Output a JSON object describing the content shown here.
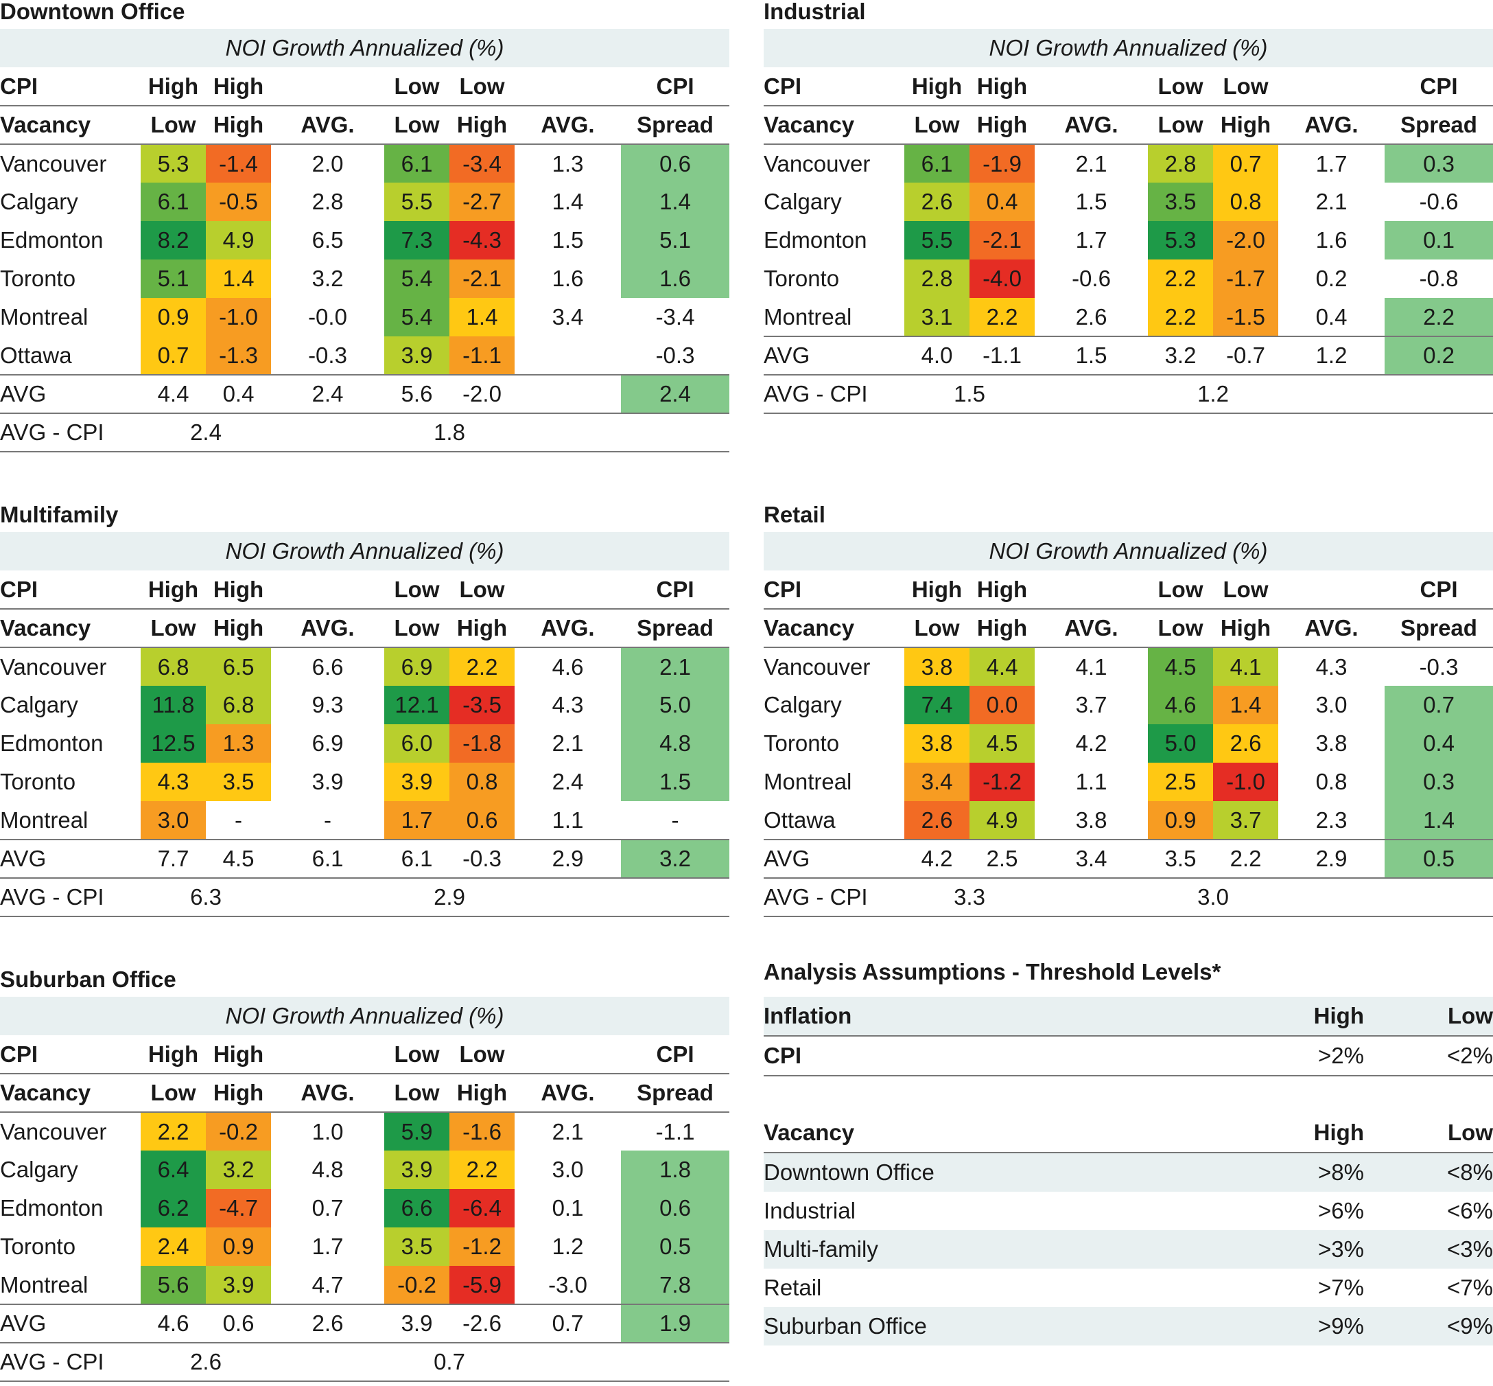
{
  "colors": {
    "header_band": "#e8f0f1",
    "spread_highlight": "#84c98b",
    "heat_dark_green": "#1e9a48",
    "heat_green": "#66b345",
    "heat_yellow_green": "#b8cf2d",
    "heat_yellow": "#ffc813",
    "heat_orange": "#f79c22",
    "heat_orange_red": "#f26b24",
    "heat_red": "#e52d24"
  },
  "common": {
    "band_label": "NOI Growth Annualized (%)",
    "row_cpi": "CPI",
    "row_vacancy": "Vacancy",
    "high": "High",
    "low": "Low",
    "avg_col": "AVG.",
    "spread": "Spread",
    "avg_row": "AVG",
    "avg_cpi_row": "AVG - CPI"
  },
  "panels": [
    {
      "id": "downtown",
      "title": "Downtown Office",
      "rows": [
        {
          "city": "Vancouver",
          "hl": [
            "5.3",
            "#b8cf2d"
          ],
          "hh": [
            "-1.4",
            "#f26b24"
          ],
          "havg": "2.0",
          "ll": [
            "6.1",
            "#66b345"
          ],
          "lh": [
            "-3.4",
            "#f26b24"
          ],
          "lavg": "1.3",
          "spread": "0.6",
          "sh": true
        },
        {
          "city": "Calgary",
          "hl": [
            "6.1",
            "#66b345"
          ],
          "hh": [
            "-0.5",
            "#f79c22"
          ],
          "havg": "2.8",
          "ll": [
            "5.5",
            "#b8cf2d"
          ],
          "lh": [
            "-2.7",
            "#f79c22"
          ],
          "lavg": "1.4",
          "spread": "1.4",
          "sh": true
        },
        {
          "city": "Edmonton",
          "hl": [
            "8.2",
            "#1e9a48"
          ],
          "hh": [
            "4.9",
            "#b8cf2d"
          ],
          "havg": "6.5",
          "ll": [
            "7.3",
            "#1e9a48"
          ],
          "lh": [
            "-4.3",
            "#e52d24"
          ],
          "lavg": "1.5",
          "spread": "5.1",
          "sh": true
        },
        {
          "city": "Toronto",
          "hl": [
            "5.1",
            "#66b345"
          ],
          "hh": [
            "1.4",
            "#ffc813"
          ],
          "havg": "3.2",
          "ll": [
            "5.4",
            "#66b345"
          ],
          "lh": [
            "-2.1",
            "#f79c22"
          ],
          "lavg": "1.6",
          "spread": "1.6",
          "sh": true
        },
        {
          "city": "Montreal",
          "hl": [
            "0.9",
            "#ffc813"
          ],
          "hh": [
            "-1.0",
            "#f79c22"
          ],
          "havg": "-0.0",
          "ll": [
            "5.4",
            "#66b345"
          ],
          "lh": [
            "1.4",
            "#ffc813"
          ],
          "lavg": "3.4",
          "spread": "-3.4",
          "sh": false
        },
        {
          "city": "Ottawa",
          "hl": [
            "0.7",
            "#ffc813"
          ],
          "hh": [
            "-1.3",
            "#f79c22"
          ],
          "havg": "-0.3",
          "ll": [
            "3.9",
            "#b8cf2d"
          ],
          "lh": [
            "-1.1",
            "#f79c22"
          ],
          "lavg": "",
          "spread": "-0.3",
          "sh": false
        }
      ],
      "avg": {
        "hl": "4.4",
        "hh": "0.4",
        "havg": "2.4",
        "ll": "5.6",
        "lh": "-2.0",
        "lavg": "",
        "spread": "2.4",
        "sh": true
      },
      "avg_cpi": {
        "high": "2.4",
        "low": "1.8"
      }
    },
    {
      "id": "industrial",
      "title": "Industrial",
      "rows": [
        {
          "city": "Vancouver",
          "hl": [
            "6.1",
            "#66b345"
          ],
          "hh": [
            "-1.9",
            "#f26b24"
          ],
          "havg": "2.1",
          "ll": [
            "2.8",
            "#b8cf2d"
          ],
          "lh": [
            "0.7",
            "#ffc813"
          ],
          "lavg": "1.7",
          "spread": "0.3",
          "sh": true
        },
        {
          "city": "Calgary",
          "hl": [
            "2.6",
            "#b8cf2d"
          ],
          "hh": [
            "0.4",
            "#f79c22"
          ],
          "havg": "1.5",
          "ll": [
            "3.5",
            "#66b345"
          ],
          "lh": [
            "0.8",
            "#ffc813"
          ],
          "lavg": "2.1",
          "spread": "-0.6",
          "sh": false
        },
        {
          "city": "Edmonton",
          "hl": [
            "5.5",
            "#1e9a48"
          ],
          "hh": [
            "-2.1",
            "#f26b24"
          ],
          "havg": "1.7",
          "ll": [
            "5.3",
            "#1e9a48"
          ],
          "lh": [
            "-2.0",
            "#f79c22"
          ],
          "lavg": "1.6",
          "spread": "0.1",
          "sh": true
        },
        {
          "city": "Toronto",
          "hl": [
            "2.8",
            "#b8cf2d"
          ],
          "hh": [
            "-4.0",
            "#e52d24"
          ],
          "havg": "-0.6",
          "ll": [
            "2.2",
            "#ffc813"
          ],
          "lh": [
            "-1.7",
            "#f79c22"
          ],
          "lavg": "0.2",
          "spread": "-0.8",
          "sh": false
        },
        {
          "city": "Montreal",
          "hl": [
            "3.1",
            "#b8cf2d"
          ],
          "hh": [
            "2.2",
            "#ffc813"
          ],
          "havg": "2.6",
          "ll": [
            "2.2",
            "#ffc813"
          ],
          "lh": [
            "-1.5",
            "#f79c22"
          ],
          "lavg": "0.4",
          "spread": "2.2",
          "sh": true
        }
      ],
      "avg": {
        "hl": "4.0",
        "hh": "-1.1",
        "havg": "1.5",
        "ll": "3.2",
        "lh": "-0.7",
        "lavg": "1.2",
        "spread": "0.2",
        "sh": true
      },
      "avg_cpi": {
        "high": "1.5",
        "low": "1.2"
      }
    },
    {
      "id": "multifamily",
      "title": "Multifamily",
      "rows": [
        {
          "city": "Vancouver",
          "hl": [
            "6.8",
            "#b8cf2d"
          ],
          "hh": [
            "6.5",
            "#b8cf2d"
          ],
          "havg": "6.6",
          "ll": [
            "6.9",
            "#b8cf2d"
          ],
          "lh": [
            "2.2",
            "#ffc813"
          ],
          "lavg": "4.6",
          "spread": "2.1",
          "sh": true
        },
        {
          "city": "Calgary",
          "hl": [
            "11.8",
            "#1e9a48"
          ],
          "hh": [
            "6.8",
            "#b8cf2d"
          ],
          "havg": "9.3",
          "ll": [
            "12.1",
            "#1e9a48"
          ],
          "lh": [
            "-3.5",
            "#e52d24"
          ],
          "lavg": "4.3",
          "spread": "5.0",
          "sh": true
        },
        {
          "city": "Edmonton",
          "hl": [
            "12.5",
            "#1e9a48"
          ],
          "hh": [
            "1.3",
            "#f79c22"
          ],
          "havg": "6.9",
          "ll": [
            "6.0",
            "#b8cf2d"
          ],
          "lh": [
            "-1.8",
            "#f26b24"
          ],
          "lavg": "2.1",
          "spread": "4.8",
          "sh": true
        },
        {
          "city": "Toronto",
          "hl": [
            "4.3",
            "#ffc813"
          ],
          "hh": [
            "3.5",
            "#ffc813"
          ],
          "havg": "3.9",
          "ll": [
            "3.9",
            "#ffc813"
          ],
          "lh": [
            "0.8",
            "#f79c22"
          ],
          "lavg": "2.4",
          "spread": "1.5",
          "sh": true
        },
        {
          "city": "Montreal",
          "hl": [
            "3.0",
            "#f79c22"
          ],
          "hh": [
            "-",
            ""
          ],
          "havg": "-",
          "ll": [
            "1.7",
            "#f79c22"
          ],
          "lh": [
            "0.6",
            "#f79c22"
          ],
          "lavg": "1.1",
          "spread": "-",
          "sh": false
        }
      ],
      "avg": {
        "hl": "7.7",
        "hh": "4.5",
        "havg": "6.1",
        "ll": "6.1",
        "lh": "-0.3",
        "lavg": "2.9",
        "spread": "3.2",
        "sh": true
      },
      "avg_cpi": {
        "high": "6.3",
        "low": "2.9"
      }
    },
    {
      "id": "retail",
      "title": "Retail",
      "rows": [
        {
          "city": "Vancouver",
          "hl": [
            "3.8",
            "#ffc813"
          ],
          "hh": [
            "4.4",
            "#b8cf2d"
          ],
          "havg": "4.1",
          "ll": [
            "4.5",
            "#66b345"
          ],
          "lh": [
            "4.1",
            "#b8cf2d"
          ],
          "lavg": "4.3",
          "spread": "-0.3",
          "sh": false
        },
        {
          "city": "Calgary",
          "hl": [
            "7.4",
            "#1e9a48"
          ],
          "hh": [
            "0.0",
            "#f26b24"
          ],
          "havg": "3.7",
          "ll": [
            "4.6",
            "#66b345"
          ],
          "lh": [
            "1.4",
            "#f79c22"
          ],
          "lavg": "3.0",
          "spread": "0.7",
          "sh": true
        },
        {
          "city": "Toronto",
          "hl": [
            "3.8",
            "#ffc813"
          ],
          "hh": [
            "4.5",
            "#b8cf2d"
          ],
          "havg": "4.2",
          "ll": [
            "5.0",
            "#1e9a48"
          ],
          "lh": [
            "2.6",
            "#ffc813"
          ],
          "lavg": "3.8",
          "spread": "0.4",
          "sh": true
        },
        {
          "city": "Montreal",
          "hl": [
            "3.4",
            "#f79c22"
          ],
          "hh": [
            "-1.2",
            "#e52d24"
          ],
          "havg": "1.1",
          "ll": [
            "2.5",
            "#ffc813"
          ],
          "lh": [
            "-1.0",
            "#e52d24"
          ],
          "lavg": "0.8",
          "spread": "0.3",
          "sh": true
        },
        {
          "city": "Ottawa",
          "hl": [
            "2.6",
            "#f26b24"
          ],
          "hh": [
            "4.9",
            "#b8cf2d"
          ],
          "havg": "3.8",
          "ll": [
            "0.9",
            "#f79c22"
          ],
          "lh": [
            "3.7",
            "#b8cf2d"
          ],
          "lavg": "2.3",
          "spread": "1.4",
          "sh": true
        }
      ],
      "avg": {
        "hl": "4.2",
        "hh": "2.5",
        "havg": "3.4",
        "ll": "3.5",
        "lh": "2.2",
        "lavg": "2.9",
        "spread": "0.5",
        "sh": true
      },
      "avg_cpi": {
        "high": "3.3",
        "low": "3.0"
      }
    },
    {
      "id": "suburban",
      "title": "Suburban Office",
      "rows": [
        {
          "city": "Vancouver",
          "hl": [
            "2.2",
            "#ffc813"
          ],
          "hh": [
            "-0.2",
            "#f79c22"
          ],
          "havg": "1.0",
          "ll": [
            "5.9",
            "#1e9a48"
          ],
          "lh": [
            "-1.6",
            "#f79c22"
          ],
          "lavg": "2.1",
          "spread": "-1.1",
          "sh": false
        },
        {
          "city": "Calgary",
          "hl": [
            "6.4",
            "#1e9a48"
          ],
          "hh": [
            "3.2",
            "#b8cf2d"
          ],
          "havg": "4.8",
          "ll": [
            "3.9",
            "#b8cf2d"
          ],
          "lh": [
            "2.2",
            "#ffc813"
          ],
          "lavg": "3.0",
          "spread": "1.8",
          "sh": true
        },
        {
          "city": "Edmonton",
          "hl": [
            "6.2",
            "#1e9a48"
          ],
          "hh": [
            "-4.7",
            "#f26b24"
          ],
          "havg": "0.7",
          "ll": [
            "6.6",
            "#1e9a48"
          ],
          "lh": [
            "-6.4",
            "#e52d24"
          ],
          "lavg": "0.1",
          "spread": "0.6",
          "sh": true
        },
        {
          "city": "Toronto",
          "hl": [
            "2.4",
            "#ffc813"
          ],
          "hh": [
            "0.9",
            "#f79c22"
          ],
          "havg": "1.7",
          "ll": [
            "3.5",
            "#b8cf2d"
          ],
          "lh": [
            "-1.2",
            "#f79c22"
          ],
          "lavg": "1.2",
          "spread": "0.5",
          "sh": true
        },
        {
          "city": "Montreal",
          "hl": [
            "5.6",
            "#66b345"
          ],
          "hh": [
            "3.9",
            "#b8cf2d"
          ],
          "havg": "4.7",
          "ll": [
            "-0.2",
            "#f79c22"
          ],
          "lh": [
            "-5.9",
            "#e52d24"
          ],
          "lavg": "-3.0",
          "spread": "7.8",
          "sh": true
        }
      ],
      "avg": {
        "hl": "4.6",
        "hh": "0.6",
        "havg": "2.6",
        "ll": "3.9",
        "lh": "-2.6",
        "lavg": "0.7",
        "spread": "1.9",
        "sh": true
      },
      "avg_cpi": {
        "high": "2.6",
        "low": "0.7"
      }
    }
  ],
  "assumptions": {
    "title": "Analysis Assumptions - Threshold Levels*",
    "inflation": {
      "header": "Inflation",
      "high": "High",
      "low": "Low",
      "rows": [
        {
          "label": "CPI",
          "high": ">2%",
          "low": "<2%"
        }
      ]
    },
    "vacancy": {
      "header": "Vacancy",
      "high": "High",
      "low": "Low",
      "rows": [
        {
          "label": "Downtown Office",
          "high": ">8%",
          "low": "<8%"
        },
        {
          "label": "Industrial",
          "high": ">6%",
          "low": "<6%"
        },
        {
          "label": "Multi-family",
          "high": ">3%",
          "low": "<3%"
        },
        {
          "label": "Retail",
          "high": ">7%",
          "low": "<7%"
        },
        {
          "label": "Suburban Office",
          "high": ">9%",
          "low": "<9%"
        }
      ]
    }
  }
}
